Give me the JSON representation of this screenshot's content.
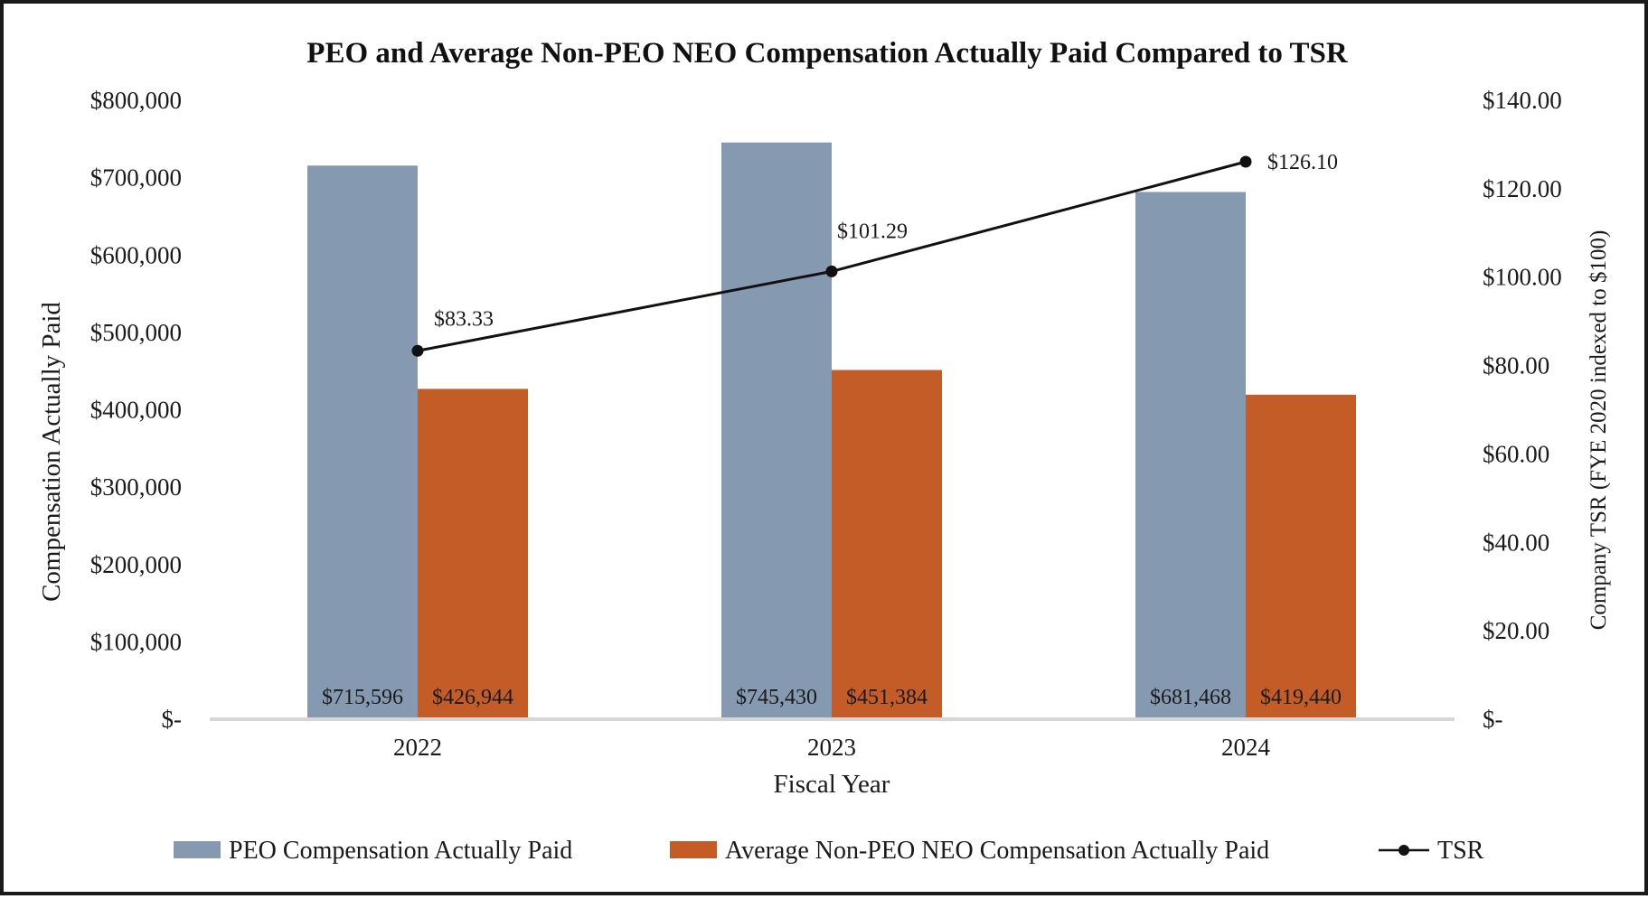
{
  "chart_data": {
    "type": "bar",
    "title": "PEO and Average Non-PEO NEO Compensation Actually Paid Compared to TSR",
    "categories": [
      "2022",
      "2023",
      "2024"
    ],
    "xlabel": "Fiscal Year",
    "ylabel": "Compensation Actually Paid",
    "ylabel_right": "Company TSR (FYE 2020 indexed to $100)",
    "ylim": [
      0,
      800000
    ],
    "ylim_right": [
      0,
      140
    ],
    "yticks": [
      {
        "value": 800000,
        "label": "$800,000"
      },
      {
        "value": 700000,
        "label": "$700,000"
      },
      {
        "value": 600000,
        "label": "$600,000"
      },
      {
        "value": 500000,
        "label": "$500,000"
      },
      {
        "value": 400000,
        "label": "$400,000"
      },
      {
        "value": 300000,
        "label": "$300,000"
      },
      {
        "value": 200000,
        "label": "$200,000"
      },
      {
        "value": 100000,
        "label": "$100,000"
      },
      {
        "value": 0,
        "label": "$-"
      }
    ],
    "yticks_right": [
      {
        "value": 140,
        "label": "$140.00"
      },
      {
        "value": 120,
        "label": "$120.00"
      },
      {
        "value": 100,
        "label": "$100.00"
      },
      {
        "value": 80,
        "label": "$80.00"
      },
      {
        "value": 60,
        "label": "$60.00"
      },
      {
        "value": 40,
        "label": "$40.00"
      },
      {
        "value": 20,
        "label": "$20.00"
      },
      {
        "value": 0,
        "label": "$-"
      }
    ],
    "series": [
      {
        "name": "PEO Compensation Actually Paid",
        "type": "bar",
        "axis": "left",
        "color": "#8599b0",
        "values": [
          715596,
          745430,
          681468
        ],
        "labels": [
          "$715,596",
          "$745,430",
          "$681,468"
        ]
      },
      {
        "name": "Average Non-PEO NEO Compensation Actually Paid",
        "type": "bar",
        "axis": "left",
        "color": "#c45c28",
        "values": [
          426944,
          451384,
          419440
        ],
        "labels": [
          "$426,944",
          "$451,384",
          "$419,440"
        ]
      },
      {
        "name": "TSR",
        "type": "line",
        "axis": "right",
        "color": "#111111",
        "values": [
          83.33,
          101.29,
          126.1
        ],
        "labels": [
          "$83.33",
          "$101.29",
          "$126.10"
        ]
      }
    ],
    "legend_position": "bottom",
    "grid": false,
    "baseline_color": "#d6d6d6"
  }
}
